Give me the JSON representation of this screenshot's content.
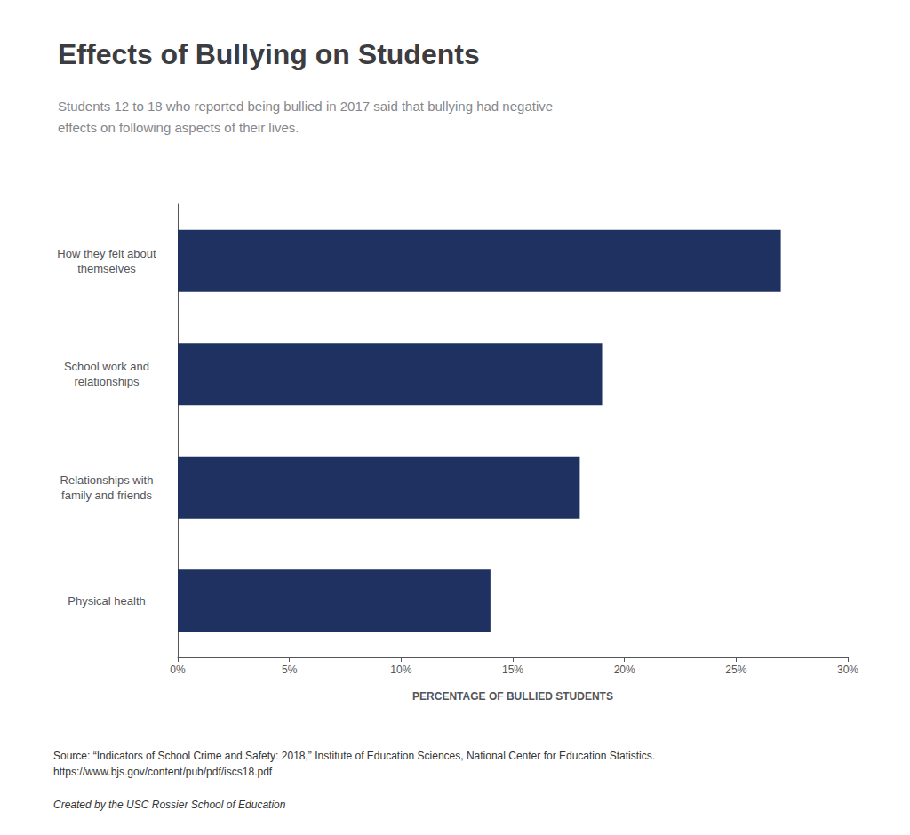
{
  "chart_data": {
    "type": "bar",
    "orientation": "horizontal",
    "title": "Effects of Bullying on Students",
    "subtitle": "Students 12 to 18 who reported being bullied in 2017 said that bullying had negative\neffects on following aspects of their lives.",
    "categories": [
      "Physical health",
      "Relationships with\nfamily and friends",
      "School work and\nrelationships",
      "How they felt about\nthemselves"
    ],
    "values": [
      14,
      18,
      19,
      27
    ],
    "color": "#1e3160",
    "xlabel": "PERCENTAGE OF BULLIED STUDENTS",
    "xlim": [
      0,
      30
    ],
    "xticks": [
      {
        "value": 0,
        "label": "0%"
      },
      {
        "value": 5,
        "label": "5%"
      },
      {
        "value": 10,
        "label": "10%"
      },
      {
        "value": 15,
        "label": "15%"
      },
      {
        "value": 20,
        "label": "20%"
      },
      {
        "value": 25,
        "label": "25%"
      },
      {
        "value": 30,
        "label": "30%"
      }
    ],
    "grid": false,
    "annotations": [
      "Source: “Indicators of School Crime and Safety: 2018,” Institute of Education Sciences, National Center for Education Statistics.\nhttps://www.bjs.gov/content/pub/pdf/iscs18.pdf",
      "Created by the USC Rossier School of Education"
    ]
  }
}
